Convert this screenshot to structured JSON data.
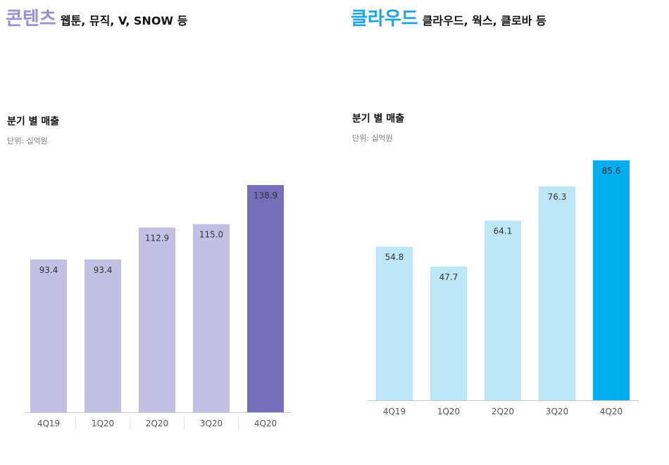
{
  "panels": [
    {
      "id": "left",
      "header_big": "콘텐츠",
      "header_small": "웹툰, 뮤직, V, SNOW 등",
      "sub_title": "분기 별 매출",
      "unit": "단위: 십억원",
      "accent": "#9a8fcf",
      "chart_data": {
        "type": "bar",
        "title": "분기 별 매출",
        "unit": "단위: 십억원",
        "categories": [
          "4Q19",
          "1Q20",
          "2Q20",
          "3Q20",
          "4Q20"
        ],
        "values": [
          93.4,
          93.4,
          112.9,
          115.0,
          138.9
        ],
        "value_labels": [
          "93.4",
          "93.4",
          "112.9",
          "115.0",
          "138.9"
        ],
        "colors": [
          "#c3c0e3",
          "#c3c0e3",
          "#c3c0e3",
          "#c3c0e3",
          "#776db9"
        ],
        "xlabel": "",
        "ylabel": "",
        "ylim": [
          0,
          138.9
        ],
        "grid": false
      }
    },
    {
      "id": "right",
      "header_big": "클라우드",
      "header_small": "클라우드, 웍스, 클로바 등",
      "sub_title": "분기 별 매출",
      "unit": "단위: 십억원",
      "accent": "#1aa5e6",
      "chart_data": {
        "type": "bar",
        "title": "분기 별 매출",
        "unit": "단위: 십억원",
        "categories": [
          "4Q19",
          "1Q20",
          "2Q20",
          "3Q20",
          "4Q20"
        ],
        "values": [
          54.8,
          47.7,
          64.1,
          76.3,
          85.6
        ],
        "value_labels": [
          "54.8",
          "47.7",
          "64.1",
          "76.3",
          "85.6"
        ],
        "colors": [
          "#bde6f6",
          "#bde6f6",
          "#bde6f6",
          "#bde6f6",
          "#00aeef"
        ],
        "xlabel": "",
        "ylabel": "",
        "ylim": [
          0,
          85.6
        ],
        "grid": false
      }
    }
  ]
}
